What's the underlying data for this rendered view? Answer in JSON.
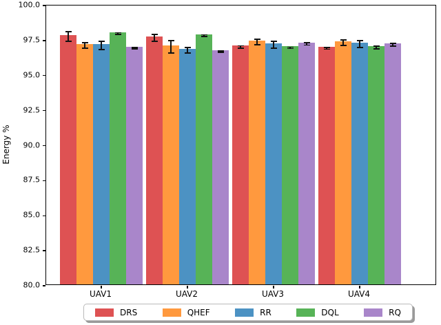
{
  "figure": {
    "kind": "matplotlib-style grouped bar chart with error bars",
    "background": "#ffffff",
    "axis_color": "#000000",
    "errorbar_color": "#111111"
  },
  "chart_data": {
    "type": "bar",
    "title": "",
    "xlabel": "",
    "ylabel": "Energy %",
    "categories": [
      "UAV1",
      "UAV2",
      "UAV3",
      "UAV4"
    ],
    "series": [
      {
        "name": "DRS",
        "color": "#de5253",
        "values": [
          97.8,
          97.7,
          97.05,
          96.95
        ],
        "errors": [
          0.35,
          0.25,
          0.08,
          0.07
        ]
      },
      {
        "name": "QHEF",
        "color": "#ff993e",
        "values": [
          97.15,
          97.05,
          97.4,
          97.35
        ],
        "errors": [
          0.2,
          0.45,
          0.2,
          0.2
        ]
      },
      {
        "name": "RR",
        "color": "#4c92c3",
        "values": [
          97.15,
          96.8,
          97.2,
          97.25
        ],
        "errors": [
          0.3,
          0.2,
          0.25,
          0.25
        ]
      },
      {
        "name": "DQL",
        "color": "#57b357",
        "values": [
          98.0,
          97.85,
          96.98,
          97.0
        ],
        "errors": [
          0.06,
          0.06,
          0.05,
          0.1
        ]
      },
      {
        "name": "RQ",
        "color": "#a986ca",
        "values": [
          96.95,
          96.7,
          97.25,
          97.2
        ],
        "errors": [
          0.05,
          0.04,
          0.08,
          0.1
        ]
      }
    ],
    "ylim": [
      80.0,
      100.0
    ],
    "yticks": [
      100.0,
      97.5,
      95.0,
      92.5,
      90.0,
      87.5,
      85.0,
      82.5,
      80.0
    ],
    "ytick_labels": [
      "100.0",
      "97.5",
      "95.0",
      "92.5",
      "90.0",
      "87.5",
      "85.0",
      "82.5",
      "80.0"
    ],
    "grid": false,
    "error_bars": true,
    "legend": {
      "position": "lower center, below axes, horizontal, fancy box with shadow",
      "entries": [
        "DRS",
        "QHEF",
        "RR",
        "DQL",
        "RQ"
      ]
    }
  }
}
